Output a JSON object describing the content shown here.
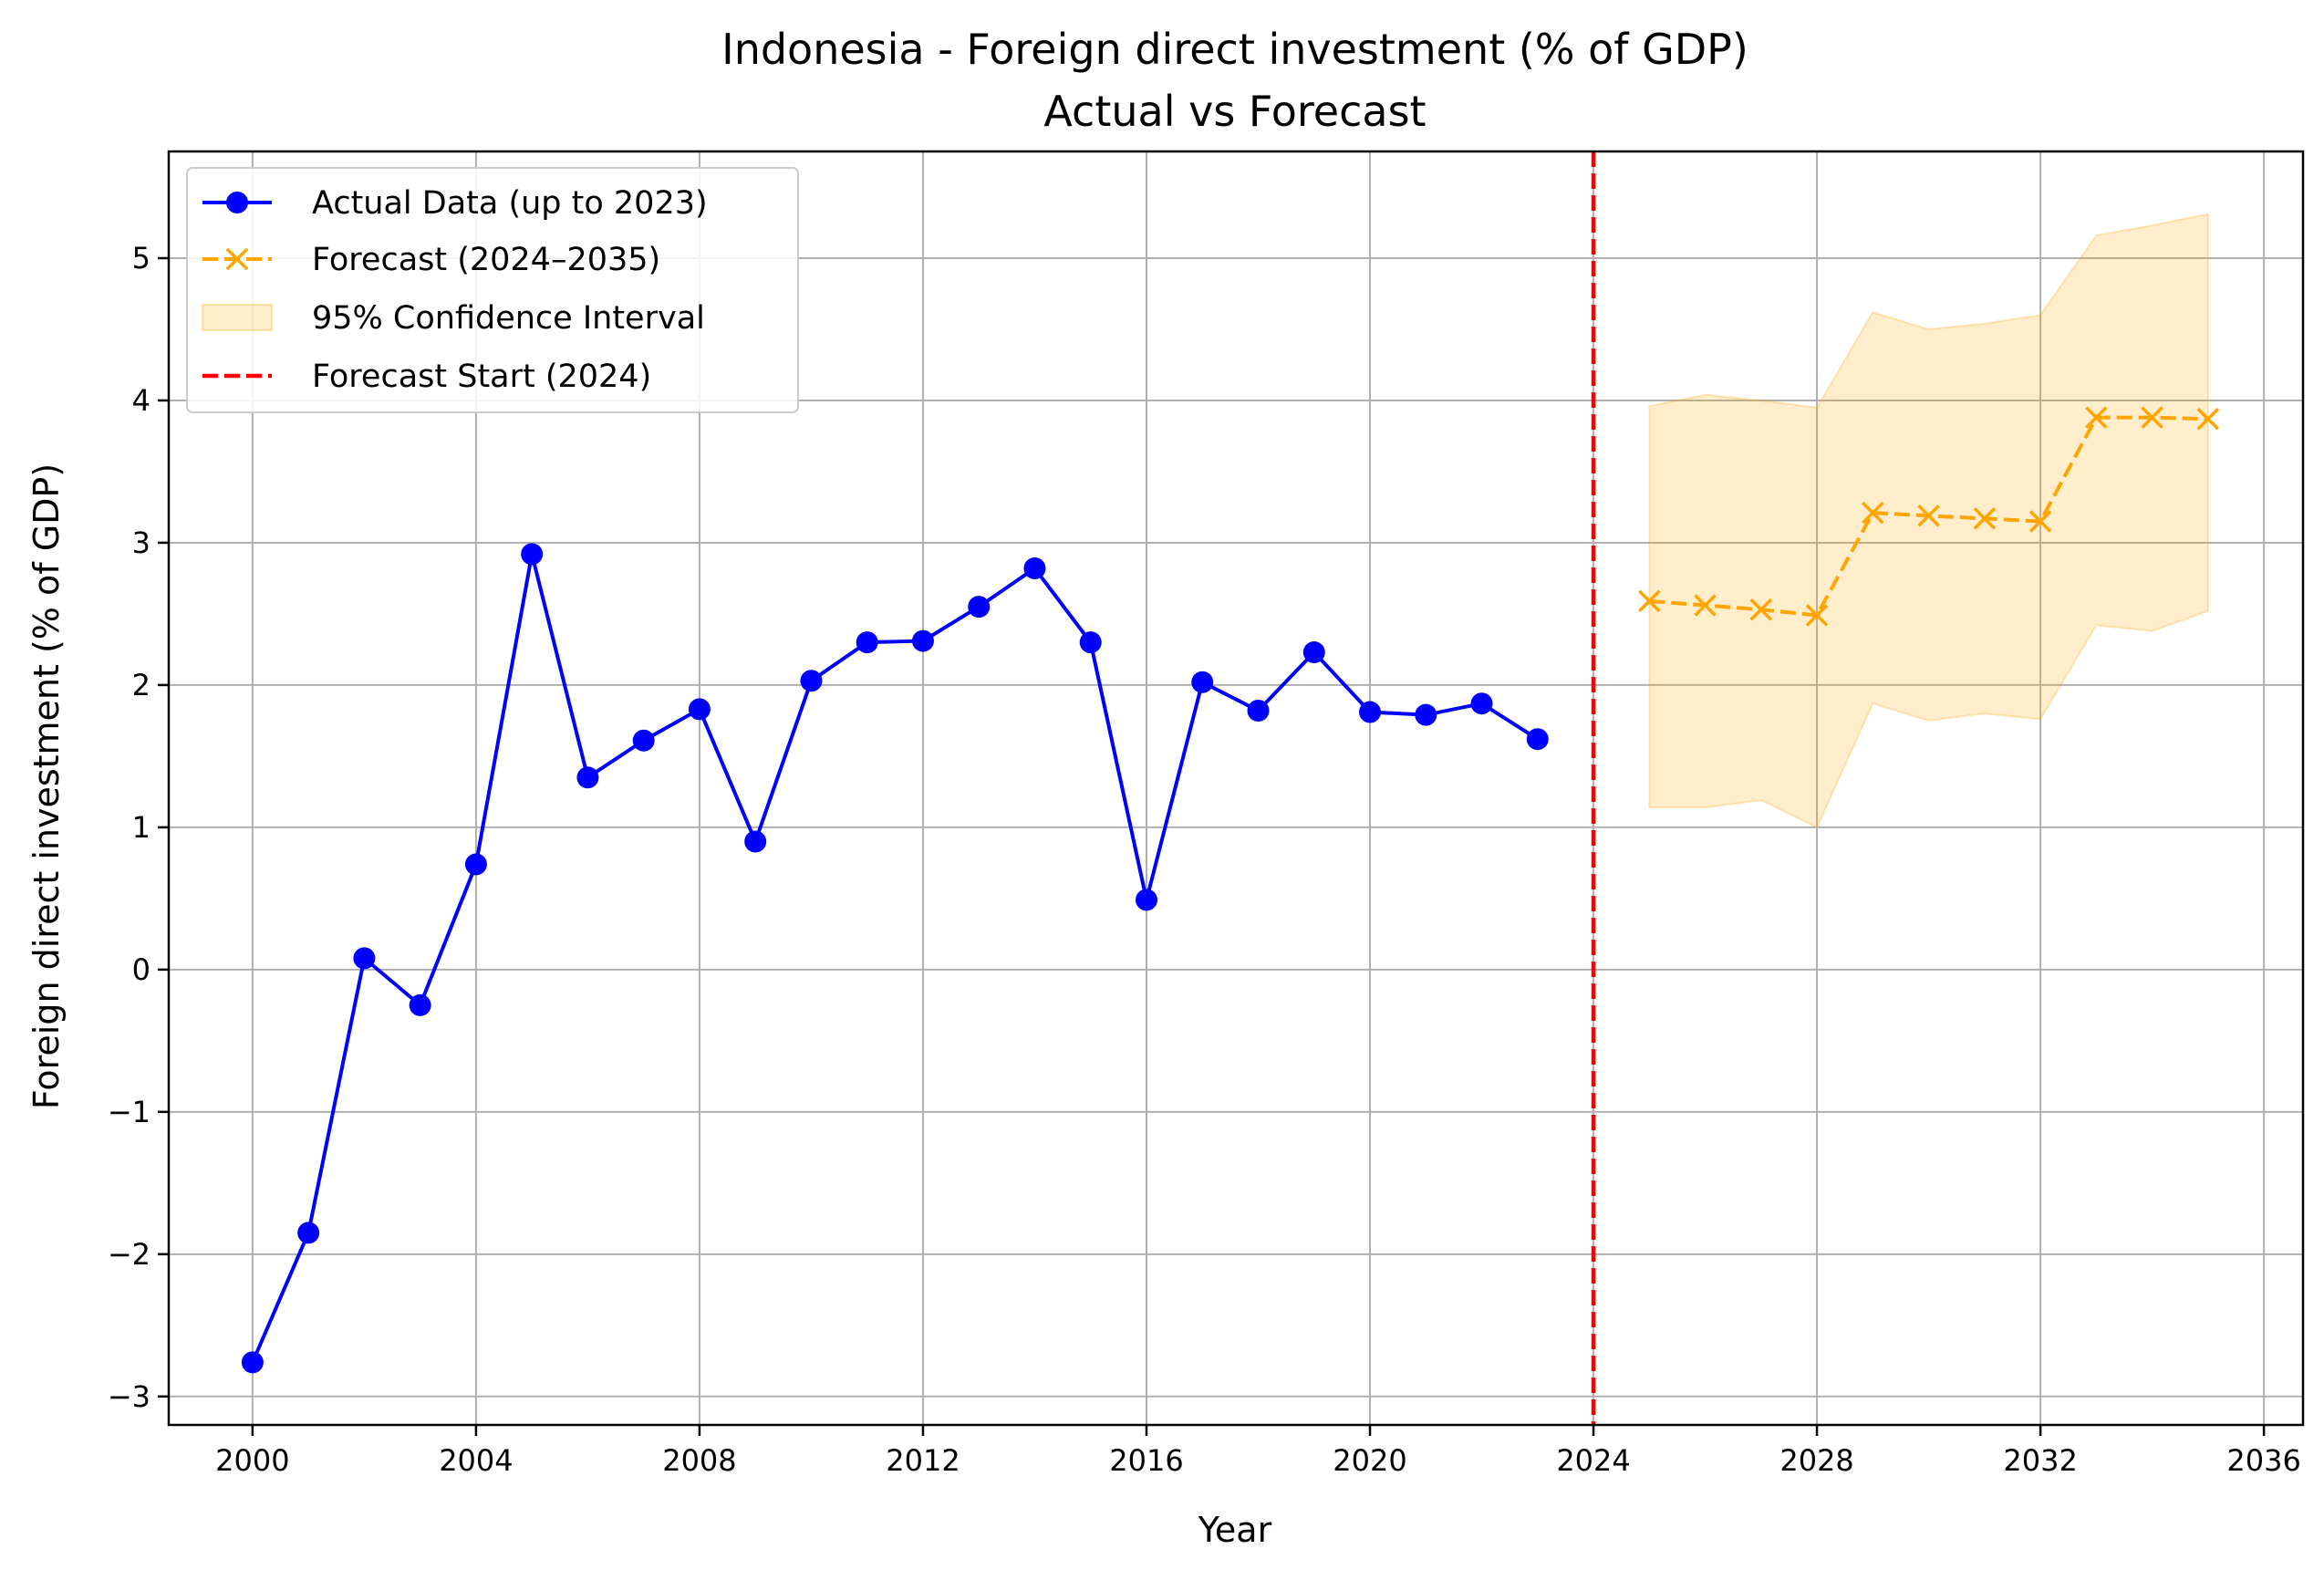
{
  "chart_data": {
    "type": "line",
    "title": "Indonesia - Foreign direct investment (% of GDP)",
    "subtitle": "Actual vs Forecast",
    "xlabel": "Year",
    "ylabel": "Foreign direct investment (% of GDP)",
    "xlim": [
      1998.5,
      2036.7
    ],
    "ylim": [
      -3.2,
      5.75
    ],
    "x_ticks": [
      2000,
      2004,
      2008,
      2012,
      2016,
      2020,
      2024,
      2028,
      2032,
      2036
    ],
    "y_ticks": [
      -3,
      -2,
      -1,
      0,
      1,
      2,
      3,
      4,
      5
    ],
    "grid": true,
    "legend_position": "top-left",
    "series": [
      {
        "name": "Actual Data (up to 2023)",
        "color": "#0000ff",
        "marker": "circle",
        "line": "solid",
        "x": [
          2000,
          2001,
          2002,
          2003,
          2004,
          2005,
          2006,
          2007,
          2008,
          2009,
          2010,
          2011,
          2012,
          2013,
          2014,
          2015,
          2016,
          2017,
          2018,
          2019,
          2020,
          2021,
          2022,
          2023
        ],
        "y": [
          -2.76,
          -1.85,
          0.08,
          -0.25,
          0.74,
          2.92,
          1.35,
          1.61,
          1.83,
          0.9,
          2.03,
          2.3,
          2.31,
          2.55,
          2.82,
          2.3,
          0.49,
          2.02,
          1.82,
          2.23,
          1.81,
          1.79,
          1.87,
          1.62
        ]
      },
      {
        "name": "Forecast (2024–2035)",
        "color": "#ffa500",
        "marker": "x",
        "line": "dashed",
        "x": [
          2025,
          2026,
          2027,
          2028,
          2029,
          2030,
          2031,
          2032,
          2033,
          2034,
          2035
        ],
        "y": [
          2.59,
          2.56,
          2.53,
          2.49,
          3.21,
          3.19,
          3.17,
          3.15,
          3.88,
          3.88,
          3.87
        ]
      }
    ],
    "confidence_interval": {
      "name": "95% Confidence Interval",
      "color": "#ffa500",
      "x": [
        2025,
        2026,
        2027,
        2028,
        2029,
        2030,
        2031,
        2032,
        2033,
        2034,
        2035
      ],
      "lower": [
        1.14,
        1.14,
        1.19,
        1.0,
        1.87,
        1.75,
        1.8,
        1.76,
        2.42,
        2.38,
        2.52
      ],
      "upper": [
        3.96,
        4.04,
        4.0,
        3.95,
        4.62,
        4.5,
        4.54,
        4.6,
        5.16,
        5.23,
        5.31
      ]
    },
    "forecast_start": {
      "name": "Forecast Start (2024)",
      "x": 2024,
      "color": "#ff0000",
      "line": "dashed"
    }
  }
}
